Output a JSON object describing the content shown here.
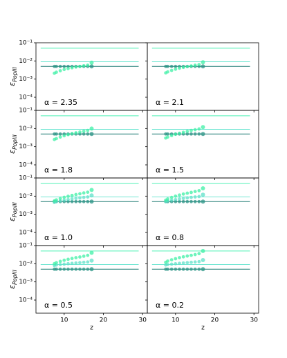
{
  "axes": {
    "xlim": [
      2.8,
      31.2
    ],
    "xticks": [
      10,
      20,
      30
    ],
    "ylim": [
      1.9e-05,
      0.1
    ],
    "log_y": true,
    "yticks": [
      {
        "value": 0.1,
        "label": "10⁻¹"
      },
      {
        "value": 0.01,
        "label": "10⁻²"
      },
      {
        "value": 0.001,
        "label": "10⁻³"
      },
      {
        "value": 0.0001,
        "label": "10⁻⁴"
      }
    ],
    "xlabel": "z",
    "ylabel": {
      "symbol": "ε",
      "subscript": "PopIII"
    }
  },
  "chart_data": [
    {
      "type": "scatter",
      "annotation": "α = 2.35",
      "x": [
        7.5,
        8,
        9,
        10,
        11,
        12,
        13,
        14,
        15,
        16,
        17
      ],
      "hlines": [
        {
          "value": 0.05,
          "color": "#4cf0b4"
        },
        {
          "value": 0.009,
          "color": "#6fe6d2"
        },
        {
          "value": 0.005,
          "color": "#1f7a72"
        }
      ],
      "series": [
        {
          "color": "#2a9486",
          "values": [
            0.005,
            0.005,
            0.005,
            0.005,
            0.005,
            0.005,
            0.005,
            0.005,
            0.005,
            0.005,
            0.005
          ]
        },
        {
          "color": "#3df0a6",
          "values": [
            0.0021,
            0.0024,
            0.0029,
            0.0034,
            0.0038,
            0.0042,
            0.0046,
            0.005,
            0.0054,
            0.0058,
            0.008
          ]
        }
      ]
    },
    {
      "type": "scatter",
      "annotation": "α = 2.1",
      "x": [
        7.5,
        8,
        9,
        10,
        11,
        12,
        13,
        14,
        15,
        16,
        17
      ],
      "hlines": [
        {
          "value": 0.05,
          "color": "#4cf0b4"
        },
        {
          "value": 0.009,
          "color": "#6fe6d2"
        },
        {
          "value": 0.005,
          "color": "#1f7a72"
        }
      ],
      "series": [
        {
          "color": "#2a9486",
          "values": [
            0.005,
            0.005,
            0.005,
            0.005,
            0.005,
            0.005,
            0.005,
            0.005,
            0.005,
            0.005,
            0.005
          ]
        },
        {
          "color": "#3df0a6",
          "values": [
            0.0022,
            0.0025,
            0.003,
            0.0035,
            0.004,
            0.0044,
            0.0049,
            0.0053,
            0.0058,
            0.0063,
            0.0085
          ]
        }
      ]
    },
    {
      "type": "scatter",
      "annotation": "α = 1.8",
      "x": [
        7.5,
        8,
        9,
        10,
        11,
        12,
        13,
        14,
        15,
        16,
        17
      ],
      "hlines": [
        {
          "value": 0.05,
          "color": "#4cf0b4"
        },
        {
          "value": 0.009,
          "color": "#6fe6d2"
        },
        {
          "value": 0.005,
          "color": "#1f7a72"
        }
      ],
      "series": [
        {
          "color": "#2a9486",
          "values": [
            0.005,
            0.005,
            0.005,
            0.005,
            0.005,
            0.005,
            0.005,
            0.005,
            0.005,
            0.005,
            0.005
          ]
        },
        {
          "color": "#3df0a6",
          "values": [
            0.0025,
            0.0028,
            0.0034,
            0.004,
            0.0046,
            0.0052,
            0.0058,
            0.0064,
            0.0071,
            0.0078,
            0.01
          ]
        }
      ]
    },
    {
      "type": "scatter",
      "annotation": "α = 1.5",
      "x": [
        7.5,
        8,
        9,
        10,
        11,
        12,
        13,
        14,
        15,
        16,
        17
      ],
      "hlines": [
        {
          "value": 0.05,
          "color": "#4cf0b4"
        },
        {
          "value": 0.009,
          "color": "#6fe6d2"
        },
        {
          "value": 0.005,
          "color": "#1f7a72"
        }
      ],
      "series": [
        {
          "color": "#2a9486",
          "values": [
            0.005,
            0.005,
            0.005,
            0.005,
            0.005,
            0.005,
            0.005,
            0.005,
            0.005,
            0.005,
            0.005
          ]
        },
        {
          "color": "#3df0a6",
          "values": [
            0.003,
            0.0034,
            0.0041,
            0.0048,
            0.0055,
            0.0062,
            0.007,
            0.0078,
            0.0086,
            0.0095,
            0.012
          ]
        }
      ]
    },
    {
      "type": "scatter",
      "annotation": "α = 1.0",
      "x": [
        7.5,
        8,
        9,
        10,
        11,
        12,
        13,
        14,
        15,
        16,
        17
      ],
      "hlines": [
        {
          "value": 0.05,
          "color": "#4cf0b4"
        },
        {
          "value": 0.009,
          "color": "#6fe6d2"
        },
        {
          "value": 0.005,
          "color": "#1f7a72"
        }
      ],
      "series": [
        {
          "color": "#2a9486",
          "values": [
            0.005,
            0.005,
            0.005,
            0.005,
            0.005,
            0.005,
            0.005,
            0.005,
            0.005,
            0.005,
            0.005
          ]
        },
        {
          "color": "#5fe0c8",
          "values": [
            0.0045,
            0.005,
            0.0055,
            0.006,
            0.0065,
            0.007,
            0.0075,
            0.008,
            0.0085,
            0.009,
            0.011
          ]
        },
        {
          "color": "#3df0a6",
          "values": [
            0.0055,
            0.0062,
            0.0074,
            0.0086,
            0.0098,
            0.011,
            0.0122,
            0.0135,
            0.015,
            0.0165,
            0.022
          ]
        }
      ]
    },
    {
      "type": "scatter",
      "annotation": "α = 0.8",
      "x": [
        7.5,
        8,
        9,
        10,
        11,
        12,
        13,
        14,
        15,
        16,
        17
      ],
      "hlines": [
        {
          "value": 0.05,
          "color": "#4cf0b4"
        },
        {
          "value": 0.009,
          "color": "#6fe6d2"
        },
        {
          "value": 0.005,
          "color": "#1f7a72"
        }
      ],
      "series": [
        {
          "color": "#2a9486",
          "values": [
            0.005,
            0.005,
            0.005,
            0.005,
            0.005,
            0.005,
            0.005,
            0.005,
            0.005,
            0.005,
            0.005
          ]
        },
        {
          "color": "#5fe0c8",
          "values": [
            0.005,
            0.0055,
            0.006,
            0.0065,
            0.007,
            0.0075,
            0.008,
            0.0085,
            0.009,
            0.0095,
            0.012
          ]
        },
        {
          "color": "#3df0a6",
          "values": [
            0.006,
            0.007,
            0.0085,
            0.01,
            0.0115,
            0.013,
            0.0145,
            0.016,
            0.018,
            0.02,
            0.027
          ]
        }
      ]
    },
    {
      "type": "scatter",
      "annotation": "α = 0.5",
      "x": [
        7.5,
        8,
        9,
        10,
        11,
        12,
        13,
        14,
        15,
        16,
        17
      ],
      "hlines": [
        {
          "value": 0.05,
          "color": "#4cf0b4"
        },
        {
          "value": 0.009,
          "color": "#6fe6d2"
        },
        {
          "value": 0.005,
          "color": "#1f7a72"
        }
      ],
      "series": [
        {
          "color": "#2a9486",
          "values": [
            0.005,
            0.005,
            0.005,
            0.005,
            0.005,
            0.005,
            0.005,
            0.005,
            0.005,
            0.005,
            0.005
          ]
        },
        {
          "color": "#5fe0c8",
          "values": [
            0.008,
            0.0085,
            0.009,
            0.0095,
            0.01,
            0.0105,
            0.011,
            0.0115,
            0.012,
            0.0125,
            0.015
          ]
        },
        {
          "color": "#3df0a6",
          "values": [
            0.01,
            0.0115,
            0.0135,
            0.0155,
            0.0175,
            0.0195,
            0.0215,
            0.0235,
            0.026,
            0.029,
            0.04
          ]
        }
      ]
    },
    {
      "type": "scatter",
      "annotation": "α = 0.2",
      "x": [
        7.5,
        8,
        9,
        10,
        11,
        12,
        13,
        14,
        15,
        16,
        17
      ],
      "hlines": [
        {
          "value": 0.05,
          "color": "#4cf0b4"
        },
        {
          "value": 0.009,
          "color": "#6fe6d2"
        },
        {
          "value": 0.005,
          "color": "#1f7a72"
        }
      ],
      "series": [
        {
          "color": "#2a9486",
          "values": [
            0.005,
            0.005,
            0.005,
            0.005,
            0.005,
            0.005,
            0.005,
            0.005,
            0.005,
            0.005,
            0.005
          ]
        },
        {
          "color": "#5fe0c8",
          "values": [
            0.0085,
            0.009,
            0.0095,
            0.01,
            0.0105,
            0.011,
            0.0115,
            0.012,
            0.0125,
            0.013,
            0.016
          ]
        },
        {
          "color": "#3df0a6",
          "values": [
            0.012,
            0.014,
            0.0165,
            0.019,
            0.0215,
            0.024,
            0.0265,
            0.029,
            0.032,
            0.036,
            0.05
          ]
        }
      ]
    }
  ]
}
